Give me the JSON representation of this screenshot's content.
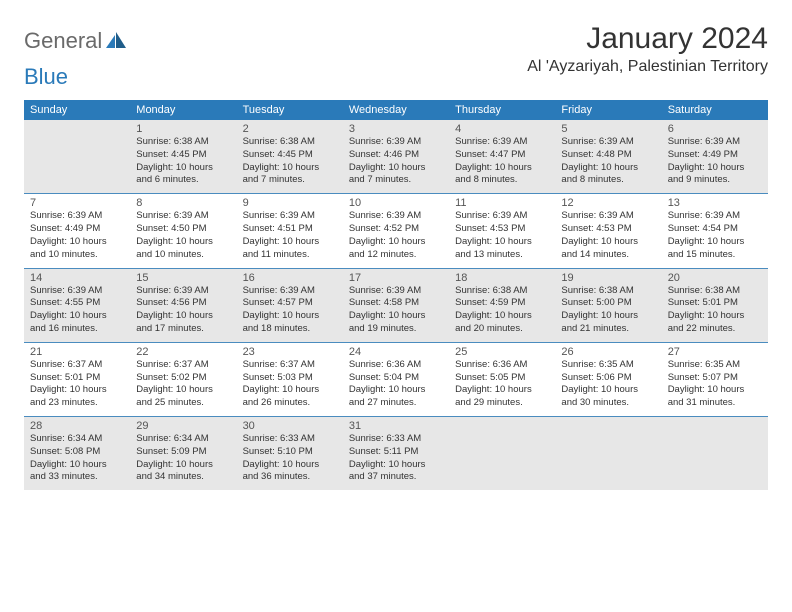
{
  "brand": {
    "part1": "General",
    "part2": "Blue"
  },
  "title": "January 2024",
  "location": "Al 'Ayzariyah, Palestinian Territory",
  "colors": {
    "header_bg": "#2a7ab9",
    "header_text": "#ffffff",
    "row_alt_bg": "#e7e7e7",
    "row_bg": "#ffffff",
    "border": "#4a8cbf",
    "logo_gray": "#6a6a6a",
    "logo_blue": "#2a7ab9",
    "text": "#333333"
  },
  "fonts": {
    "title_size": 30,
    "location_size": 16,
    "dayhead_size": 11,
    "cell_size": 9.5
  },
  "weekdays": [
    "Sunday",
    "Monday",
    "Tuesday",
    "Wednesday",
    "Thursday",
    "Friday",
    "Saturday"
  ],
  "weeks": [
    [
      null,
      {
        "d": "1",
        "sr": "Sunrise: 6:38 AM",
        "ss": "Sunset: 4:45 PM",
        "dl1": "Daylight: 10 hours",
        "dl2": "and 6 minutes."
      },
      {
        "d": "2",
        "sr": "Sunrise: 6:38 AM",
        "ss": "Sunset: 4:45 PM",
        "dl1": "Daylight: 10 hours",
        "dl2": "and 7 minutes."
      },
      {
        "d": "3",
        "sr": "Sunrise: 6:39 AM",
        "ss": "Sunset: 4:46 PM",
        "dl1": "Daylight: 10 hours",
        "dl2": "and 7 minutes."
      },
      {
        "d": "4",
        "sr": "Sunrise: 6:39 AM",
        "ss": "Sunset: 4:47 PM",
        "dl1": "Daylight: 10 hours",
        "dl2": "and 8 minutes."
      },
      {
        "d": "5",
        "sr": "Sunrise: 6:39 AM",
        "ss": "Sunset: 4:48 PM",
        "dl1": "Daylight: 10 hours",
        "dl2": "and 8 minutes."
      },
      {
        "d": "6",
        "sr": "Sunrise: 6:39 AM",
        "ss": "Sunset: 4:49 PM",
        "dl1": "Daylight: 10 hours",
        "dl2": "and 9 minutes."
      }
    ],
    [
      {
        "d": "7",
        "sr": "Sunrise: 6:39 AM",
        "ss": "Sunset: 4:49 PM",
        "dl1": "Daylight: 10 hours",
        "dl2": "and 10 minutes."
      },
      {
        "d": "8",
        "sr": "Sunrise: 6:39 AM",
        "ss": "Sunset: 4:50 PM",
        "dl1": "Daylight: 10 hours",
        "dl2": "and 10 minutes."
      },
      {
        "d": "9",
        "sr": "Sunrise: 6:39 AM",
        "ss": "Sunset: 4:51 PM",
        "dl1": "Daylight: 10 hours",
        "dl2": "and 11 minutes."
      },
      {
        "d": "10",
        "sr": "Sunrise: 6:39 AM",
        "ss": "Sunset: 4:52 PM",
        "dl1": "Daylight: 10 hours",
        "dl2": "and 12 minutes."
      },
      {
        "d": "11",
        "sr": "Sunrise: 6:39 AM",
        "ss": "Sunset: 4:53 PM",
        "dl1": "Daylight: 10 hours",
        "dl2": "and 13 minutes."
      },
      {
        "d": "12",
        "sr": "Sunrise: 6:39 AM",
        "ss": "Sunset: 4:53 PM",
        "dl1": "Daylight: 10 hours",
        "dl2": "and 14 minutes."
      },
      {
        "d": "13",
        "sr": "Sunrise: 6:39 AM",
        "ss": "Sunset: 4:54 PM",
        "dl1": "Daylight: 10 hours",
        "dl2": "and 15 minutes."
      }
    ],
    [
      {
        "d": "14",
        "sr": "Sunrise: 6:39 AM",
        "ss": "Sunset: 4:55 PM",
        "dl1": "Daylight: 10 hours",
        "dl2": "and 16 minutes."
      },
      {
        "d": "15",
        "sr": "Sunrise: 6:39 AM",
        "ss": "Sunset: 4:56 PM",
        "dl1": "Daylight: 10 hours",
        "dl2": "and 17 minutes."
      },
      {
        "d": "16",
        "sr": "Sunrise: 6:39 AM",
        "ss": "Sunset: 4:57 PM",
        "dl1": "Daylight: 10 hours",
        "dl2": "and 18 minutes."
      },
      {
        "d": "17",
        "sr": "Sunrise: 6:39 AM",
        "ss": "Sunset: 4:58 PM",
        "dl1": "Daylight: 10 hours",
        "dl2": "and 19 minutes."
      },
      {
        "d": "18",
        "sr": "Sunrise: 6:38 AM",
        "ss": "Sunset: 4:59 PM",
        "dl1": "Daylight: 10 hours",
        "dl2": "and 20 minutes."
      },
      {
        "d": "19",
        "sr": "Sunrise: 6:38 AM",
        "ss": "Sunset: 5:00 PM",
        "dl1": "Daylight: 10 hours",
        "dl2": "and 21 minutes."
      },
      {
        "d": "20",
        "sr": "Sunrise: 6:38 AM",
        "ss": "Sunset: 5:01 PM",
        "dl1": "Daylight: 10 hours",
        "dl2": "and 22 minutes."
      }
    ],
    [
      {
        "d": "21",
        "sr": "Sunrise: 6:37 AM",
        "ss": "Sunset: 5:01 PM",
        "dl1": "Daylight: 10 hours",
        "dl2": "and 23 minutes."
      },
      {
        "d": "22",
        "sr": "Sunrise: 6:37 AM",
        "ss": "Sunset: 5:02 PM",
        "dl1": "Daylight: 10 hours",
        "dl2": "and 25 minutes."
      },
      {
        "d": "23",
        "sr": "Sunrise: 6:37 AM",
        "ss": "Sunset: 5:03 PM",
        "dl1": "Daylight: 10 hours",
        "dl2": "and 26 minutes."
      },
      {
        "d": "24",
        "sr": "Sunrise: 6:36 AM",
        "ss": "Sunset: 5:04 PM",
        "dl1": "Daylight: 10 hours",
        "dl2": "and 27 minutes."
      },
      {
        "d": "25",
        "sr": "Sunrise: 6:36 AM",
        "ss": "Sunset: 5:05 PM",
        "dl1": "Daylight: 10 hours",
        "dl2": "and 29 minutes."
      },
      {
        "d": "26",
        "sr": "Sunrise: 6:35 AM",
        "ss": "Sunset: 5:06 PM",
        "dl1": "Daylight: 10 hours",
        "dl2": "and 30 minutes."
      },
      {
        "d": "27",
        "sr": "Sunrise: 6:35 AM",
        "ss": "Sunset: 5:07 PM",
        "dl1": "Daylight: 10 hours",
        "dl2": "and 31 minutes."
      }
    ],
    [
      {
        "d": "28",
        "sr": "Sunrise: 6:34 AM",
        "ss": "Sunset: 5:08 PM",
        "dl1": "Daylight: 10 hours",
        "dl2": "and 33 minutes."
      },
      {
        "d": "29",
        "sr": "Sunrise: 6:34 AM",
        "ss": "Sunset: 5:09 PM",
        "dl1": "Daylight: 10 hours",
        "dl2": "and 34 minutes."
      },
      {
        "d": "30",
        "sr": "Sunrise: 6:33 AM",
        "ss": "Sunset: 5:10 PM",
        "dl1": "Daylight: 10 hours",
        "dl2": "and 36 minutes."
      },
      {
        "d": "31",
        "sr": "Sunrise: 6:33 AM",
        "ss": "Sunset: 5:11 PM",
        "dl1": "Daylight: 10 hours",
        "dl2": "and 37 minutes."
      },
      null,
      null,
      null
    ]
  ]
}
